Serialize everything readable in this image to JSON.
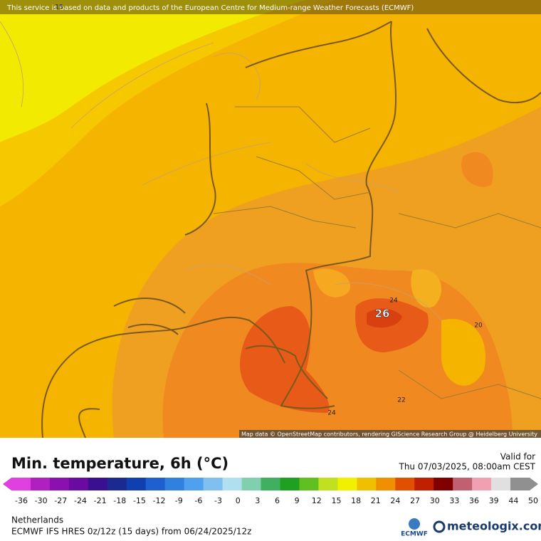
{
  "banner": "This service is based on data and products of the European Centre for Medium-range Weather Forecasts (ECMWF)",
  "map": {
    "contour_labels": [
      "15",
      "26",
      "24",
      "20",
      "22",
      "24"
    ],
    "attribution": "Map data © OpenStreetMap contributors, rendering GIScience Research Group @ Heidelberg University"
  },
  "header": {
    "title": "Min. temperature, 6h (°C)",
    "valid_label": "Valid for",
    "valid_time": "Thu 07/03/2025, 08:00am CEST"
  },
  "legend": {
    "ticks": [
      -36,
      -30,
      -27,
      -24,
      -21,
      -18,
      -15,
      -12,
      -9,
      -6,
      -3,
      0,
      3,
      6,
      9,
      12,
      15,
      18,
      21,
      24,
      27,
      30,
      33,
      36,
      39,
      44,
      50
    ],
    "colors": [
      "#e040e0",
      "#b020c0",
      "#8a10b0",
      "#6a0aa0",
      "#3a1090",
      "#1a2a90",
      "#1040b0",
      "#1e60d0",
      "#3080e0",
      "#50a0f0",
      "#80c0f0",
      "#b0e0f0",
      "#80d0b0",
      "#40b060",
      "#20a020",
      "#60c020",
      "#c0e020",
      "#f0f000",
      "#f0c000",
      "#f09000",
      "#e05000",
      "#c02000",
      "#800000",
      "#c06070",
      "#f0a0b0",
      "#e0e0e0",
      "#909090"
    ]
  },
  "footer": {
    "region": "Netherlands",
    "model": "ECMWF IFS HRES 0z/12z (15 days) from  06/24/2025/12z",
    "ecmwf_logo": "ECMWF",
    "brand": "meteologix.com"
  }
}
